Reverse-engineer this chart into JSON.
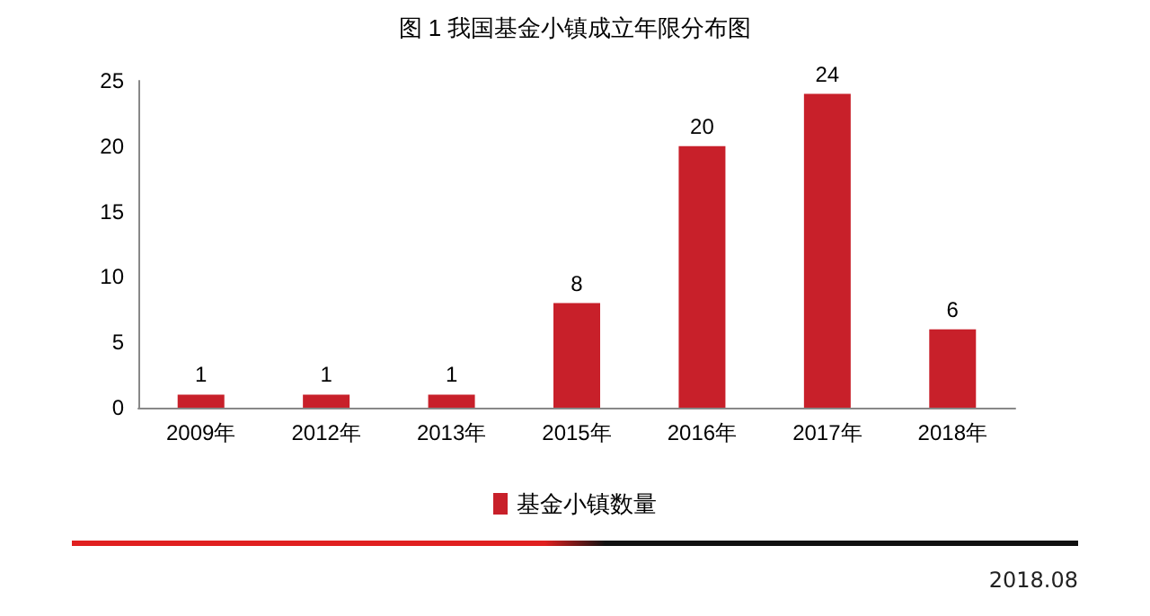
{
  "chart_data": {
    "type": "bar",
    "title": "图 1 我国基金小镇成立年限分布图",
    "categories": [
      "2009年",
      "2012年",
      "2013年",
      "2015年",
      "2016年",
      "2017年",
      "2018年"
    ],
    "series": [
      {
        "name": "基金小镇数量",
        "color": "#c8202a",
        "values": [
          1,
          1,
          1,
          8,
          20,
          24,
          6
        ]
      }
    ],
    "ylim": [
      0,
      25
    ],
    "yticks": [
      0,
      5,
      10,
      15,
      20,
      25
    ],
    "grid": false,
    "legend": "bottom",
    "data_labels": true,
    "annotations": [
      "2018.08"
    ]
  }
}
